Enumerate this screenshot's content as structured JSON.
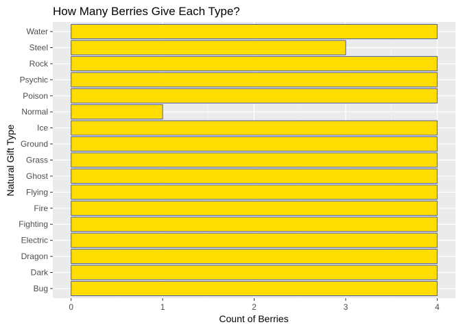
{
  "chart_data": {
    "type": "bar",
    "orientation": "horizontal",
    "title": "How Many Berries Give Each Type?",
    "xlabel": "Count of Berries",
    "ylabel": "Natural Gift Type",
    "categories": [
      "Bug",
      "Dark",
      "Dragon",
      "Electric",
      "Fighting",
      "Fire",
      "Flying",
      "Ghost",
      "Grass",
      "Ground",
      "Ice",
      "Normal",
      "Poison",
      "Psychic",
      "Rock",
      "Steel",
      "Water"
    ],
    "values": [
      4,
      4,
      4,
      4,
      4,
      4,
      4,
      4,
      4,
      4,
      4,
      1,
      4,
      4,
      4,
      3,
      4
    ],
    "xlim": [
      -0.2,
      4.2
    ],
    "x_ticks": [
      0,
      1,
      2,
      3,
      4
    ],
    "x_tick_labels": [
      "0",
      "1",
      "2",
      "3",
      "4"
    ],
    "grid": true,
    "legend": "none",
    "colors": {
      "bar_fill": "#FFDD00",
      "bar_stroke": "#4A5AA8",
      "panel_bg": "#EBEBEB",
      "grid_major": "#FFFFFF",
      "grid_minor": "#F5F5F5",
      "tick_text": "#4D4D4D",
      "tick_mark": "#333333"
    }
  }
}
